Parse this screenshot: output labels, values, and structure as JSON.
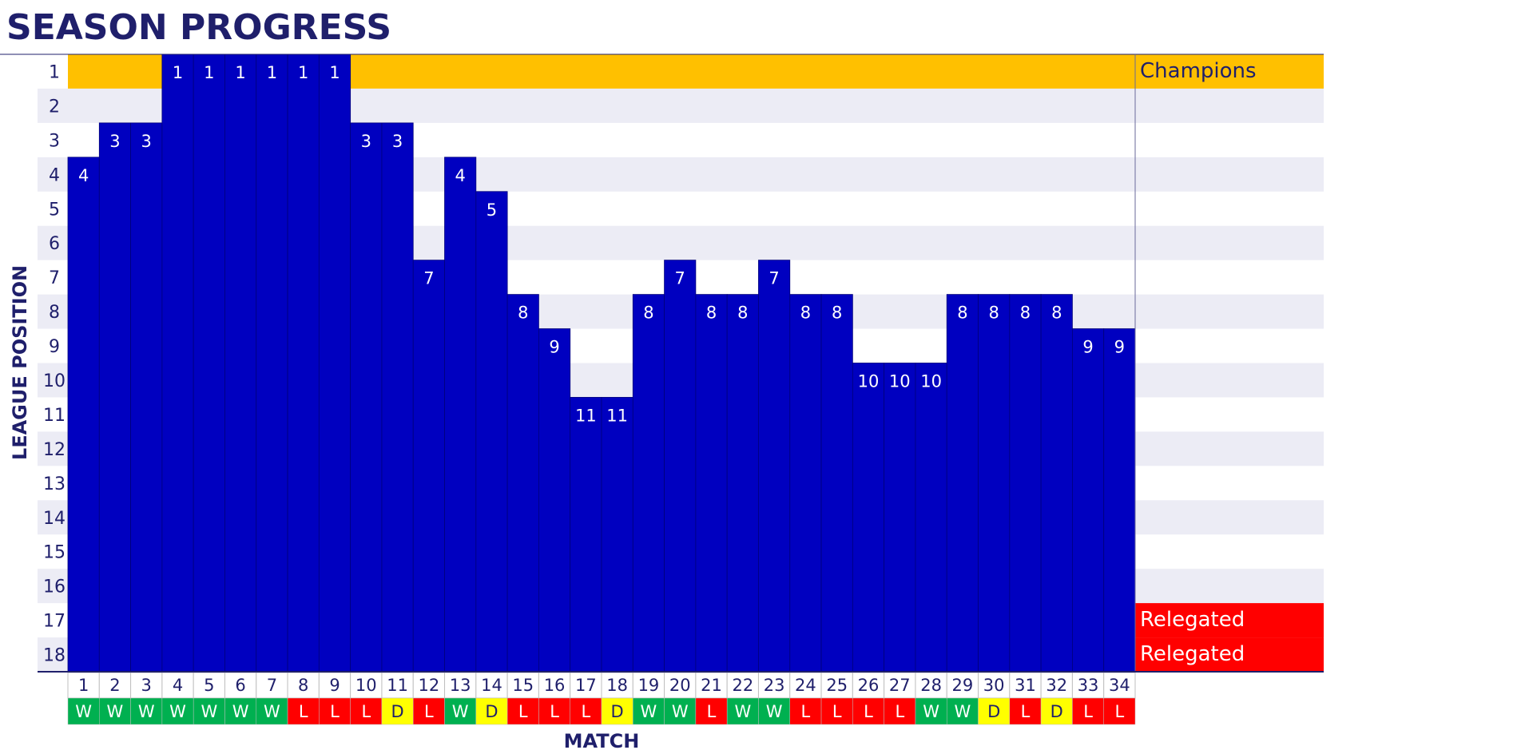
{
  "chart_data": {
    "type": "bar",
    "title": "SEASON PROGRESS",
    "x_label": "MATCH",
    "y_label": "LEAGUE POSITION",
    "categories": [
      1,
      2,
      3,
      4,
      5,
      6,
      7,
      8,
      9,
      10,
      11,
      12,
      13,
      14,
      15,
      16,
      17,
      18,
      19,
      20,
      21,
      22,
      23,
      24,
      25,
      26,
      27,
      28,
      29,
      30,
      31,
      32,
      33,
      34
    ],
    "values": [
      4,
      3,
      3,
      1,
      1,
      1,
      1,
      1,
      1,
      3,
      3,
      7,
      4,
      5,
      8,
      9,
      11,
      11,
      8,
      7,
      8,
      8,
      7,
      8,
      8,
      10,
      10,
      10,
      8,
      8,
      8,
      8,
      9,
      9
    ],
    "results": [
      "W",
      "W",
      "W",
      "W",
      "W",
      "W",
      "W",
      "L",
      "L",
      "L",
      "D",
      "L",
      "W",
      "D",
      "L",
      "L",
      "L",
      "D",
      "W",
      "W",
      "L",
      "W",
      "W",
      "L",
      "L",
      "L",
      "L",
      "W",
      "W",
      "D",
      "L",
      "D",
      "L",
      "L"
    ],
    "result_colors": {
      "W": "#00B050",
      "L": "#FF0000",
      "D": "#FFFF00"
    },
    "color": "#0000C0",
    "y_inverted": true,
    "ylim": [
      0.5,
      18.5
    ],
    "yticks": [
      1,
      2,
      3,
      4,
      5,
      6,
      7,
      8,
      9,
      10,
      11,
      12,
      13,
      14,
      15,
      16,
      17,
      18
    ],
    "position_labels": [
      "Champions",
      null,
      null,
      null,
      null,
      null,
      null,
      null,
      null,
      null,
      null,
      null,
      null,
      null,
      null,
      null,
      "Relegated",
      "Relegated"
    ],
    "champions_color": "#FFC000",
    "relegation_color": "#FF0000"
  }
}
